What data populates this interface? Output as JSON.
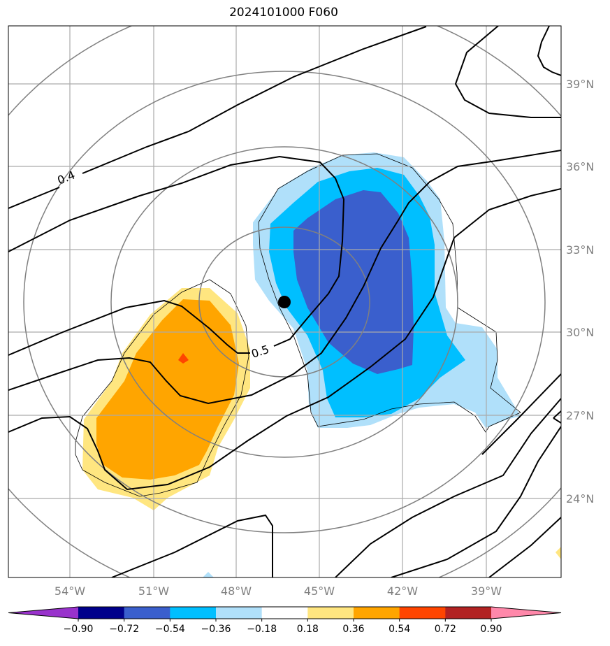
{
  "title": "2024101000 F060",
  "map": {
    "lon_ticks": [
      "54°W",
      "51°W",
      "48°W",
      "45°W",
      "42°W",
      "39°W"
    ],
    "lat_ticks": [
      "39°N",
      "36°N",
      "33°N",
      "30°N",
      "27°N",
      "24°N"
    ],
    "contour_labels": [
      "0.4",
      "0.5"
    ],
    "storm_marker": {
      "lon": -46.3,
      "lat": 31.1
    }
  },
  "colorbar": {
    "ticks": [
      "−0.90",
      "−0.72",
      "−0.54",
      "−0.36",
      "−0.18",
      "0.18",
      "0.36",
      "0.54",
      "0.72",
      "0.90"
    ],
    "colors": [
      "#9932CC",
      "#00008B",
      "#3A5FCD",
      "#00BFFF",
      "#B0E0FA",
      "#FFFFFF",
      "#FFE680",
      "#FFA500",
      "#FF4500",
      "#B22222",
      "#FF88AA"
    ]
  }
}
